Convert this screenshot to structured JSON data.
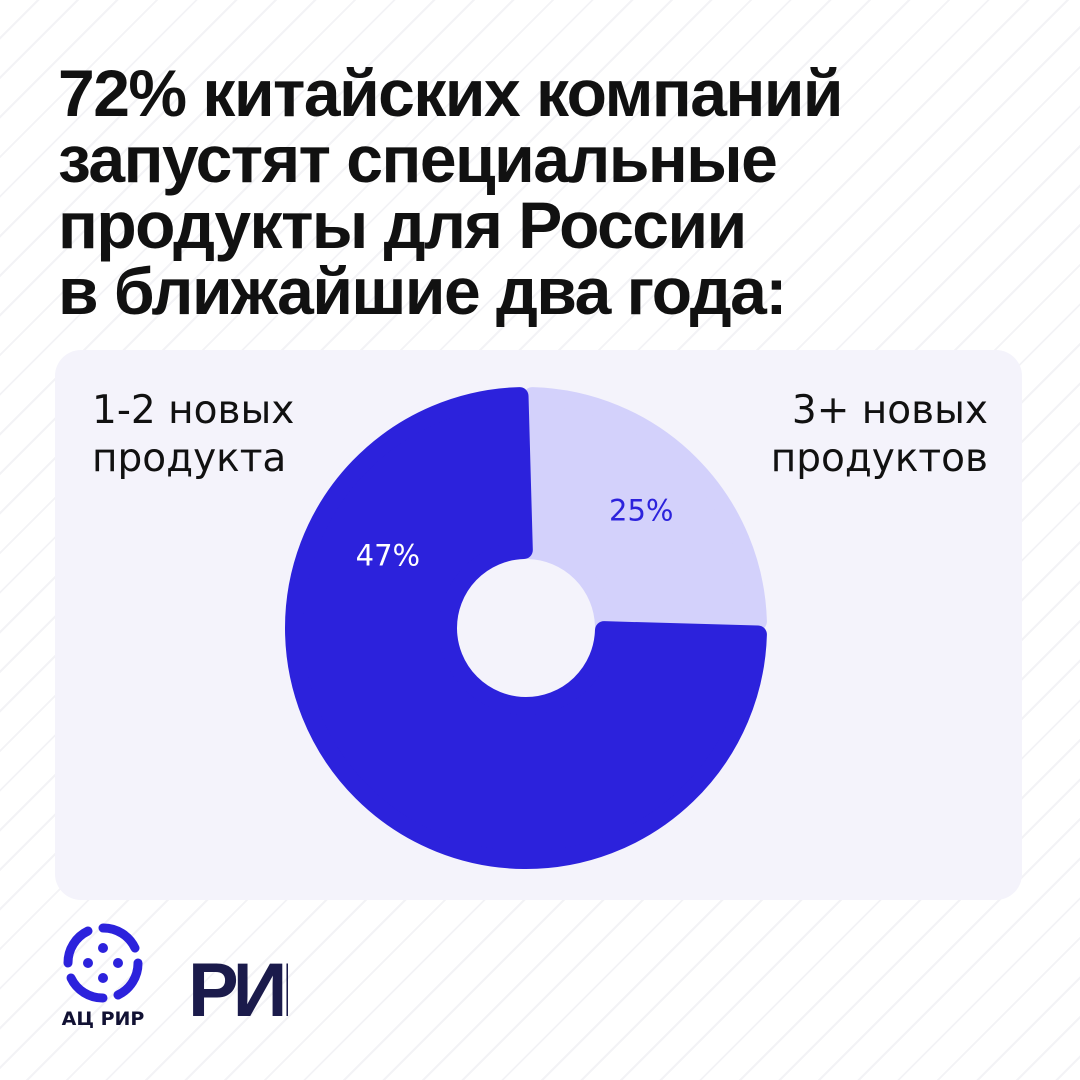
{
  "headline": {
    "lines": [
      "72% китайских компаний",
      "запустят специальные",
      "продукты для России",
      "в ближайшие два года:"
    ]
  },
  "chart_data": {
    "type": "pie",
    "categories": [
      "1-2 новых продукта",
      "3+ новых продуктов"
    ],
    "values": [
      47,
      25
    ],
    "value_labels": [
      "47%",
      "25%"
    ],
    "colors": [
      "#2c22dc",
      "#d3d1fb"
    ],
    "label_colors": [
      "#ffffff",
      "#2c22dc"
    ]
  },
  "labels": {
    "left": [
      "1-2 новых",
      "продукта"
    ],
    "right": [
      "3+ новых",
      "продуктов"
    ]
  },
  "footer": {
    "acc_caption": "АЦ РИР",
    "brand_mark": "РИР"
  },
  "colors": {
    "accent": "#2c22dc",
    "accent_light": "#d3d1fb",
    "card": "#f4f3fb",
    "brand_navy": "#1b1b4b"
  }
}
